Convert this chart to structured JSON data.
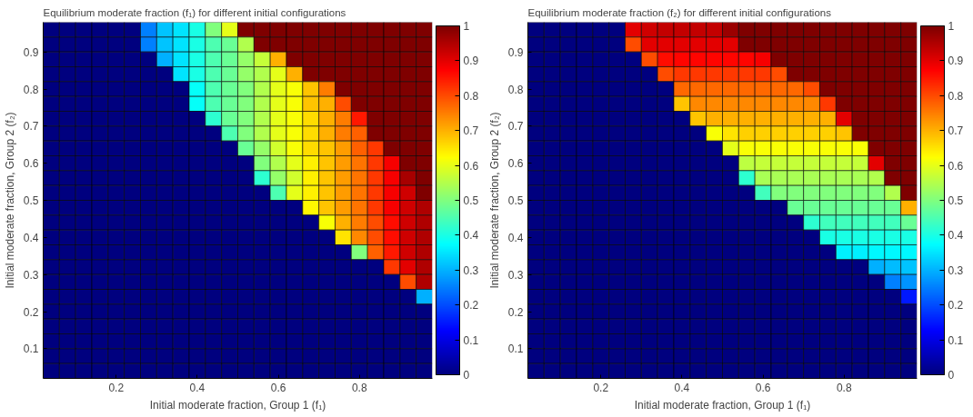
{
  "chart_data": [
    {
      "type": "heatmap",
      "title": "Equilibrium moderate fraction (f₁) for different initial configurations",
      "xlabel": "Initial moderate fraction, Group 1 (f₁)",
      "ylabel": "Initial moderate fraction, Group 2 (f₂)",
      "x": [
        0.04,
        0.08,
        0.12,
        0.16,
        0.2,
        0.24,
        0.28,
        0.32,
        0.36,
        0.4,
        0.44,
        0.48,
        0.52,
        0.56,
        0.6,
        0.64,
        0.68,
        0.72,
        0.76,
        0.8,
        0.84,
        0.88,
        0.92,
        0.96
      ],
      "y": [
        0.96,
        0.92,
        0.88,
        0.84,
        0.8,
        0.76,
        0.72,
        0.68,
        0.64,
        0.6,
        0.56,
        0.52,
        0.48,
        0.44,
        0.4,
        0.36,
        0.32,
        0.28,
        0.24,
        0.2,
        0.16,
        0.12,
        0.08,
        0.04
      ],
      "xlim": [
        0.02,
        0.98
      ],
      "ylim": [
        0.02,
        0.98
      ],
      "xticks": [
        0.2,
        0.4,
        0.6,
        0.8
      ],
      "yticks": [
        0.1,
        0.2,
        0.3,
        0.4,
        0.5,
        0.6,
        0.7,
        0.8,
        0.9
      ],
      "clim": [
        0,
        1
      ],
      "cticks": [
        0,
        0.1,
        0.2,
        0.3,
        0.4,
        0.5,
        0.6,
        0.7,
        0.8,
        0.9,
        1
      ],
      "cells": [
        [
          0,
          0,
          0,
          0,
          0,
          0,
          0.25,
          0.32,
          0.35,
          0.4,
          0.5,
          0.6,
          1,
          1,
          1,
          1,
          1,
          1,
          1,
          1,
          1,
          1,
          1,
          1
        ],
        [
          0,
          0,
          0,
          0,
          0,
          0,
          0.25,
          0.32,
          0.35,
          0.4,
          0.45,
          0.48,
          0.55,
          1,
          1,
          1,
          1,
          1,
          1,
          1,
          1,
          1,
          1,
          1
        ],
        [
          0,
          0,
          0,
          0,
          0,
          0,
          0,
          0.3,
          0.35,
          0.4,
          0.45,
          0.48,
          0.52,
          0.57,
          0.7,
          1,
          1,
          1,
          1,
          1,
          1,
          1,
          1,
          1
        ],
        [
          0,
          0,
          0,
          0,
          0,
          0,
          0,
          0,
          0.35,
          0.4,
          0.45,
          0.48,
          0.52,
          0.55,
          0.6,
          0.7,
          1,
          1,
          1,
          1,
          1,
          1,
          1,
          1
        ],
        [
          0,
          0,
          0,
          0,
          0,
          0,
          0,
          0,
          0,
          0.38,
          0.45,
          0.48,
          0.5,
          0.55,
          0.6,
          0.62,
          0.68,
          0.75,
          1,
          1,
          1,
          1,
          1,
          1
        ],
        [
          0,
          0,
          0,
          0,
          0,
          0,
          0,
          0,
          0,
          0.38,
          0.45,
          0.48,
          0.5,
          0.55,
          0.6,
          0.62,
          0.68,
          0.7,
          0.8,
          1,
          1,
          1,
          1,
          1
        ],
        [
          0,
          0,
          0,
          0,
          0,
          0,
          0,
          0,
          0,
          0,
          0.42,
          0.48,
          0.5,
          0.55,
          0.6,
          0.62,
          0.66,
          0.7,
          0.75,
          0.85,
          1,
          1,
          1,
          1
        ],
        [
          0,
          0,
          0,
          0,
          0,
          0,
          0,
          0,
          0,
          0,
          0,
          0.45,
          0.5,
          0.55,
          0.6,
          0.62,
          0.66,
          0.7,
          0.75,
          0.78,
          1,
          1,
          1,
          1
        ],
        [
          0,
          0,
          0,
          0,
          0,
          0,
          0,
          0,
          0,
          0,
          0,
          0,
          0.48,
          0.52,
          0.58,
          0.62,
          0.66,
          0.68,
          0.72,
          0.78,
          0.82,
          1,
          1,
          1
        ],
        [
          0,
          0,
          0,
          0,
          0,
          0,
          0,
          0,
          0,
          0,
          0,
          0,
          0,
          0.5,
          0.55,
          0.6,
          0.64,
          0.68,
          0.72,
          0.76,
          0.82,
          0.88,
          1,
          1
        ],
        [
          0,
          0,
          0,
          0,
          0,
          0,
          0,
          0,
          0,
          0,
          0,
          0,
          0,
          0.42,
          0.52,
          0.58,
          0.64,
          0.68,
          0.72,
          0.76,
          0.82,
          0.88,
          0.96,
          1
        ],
        [
          0,
          0,
          0,
          0,
          0,
          0,
          0,
          0,
          0,
          0,
          0,
          0,
          0,
          0,
          0.45,
          0.6,
          0.64,
          0.68,
          0.72,
          0.76,
          0.82,
          0.88,
          0.92,
          1
        ],
        [
          0,
          0,
          0,
          0,
          0,
          0,
          0,
          0,
          0,
          0,
          0,
          0,
          0,
          0,
          0,
          0,
          0.63,
          0.68,
          0.72,
          0.76,
          0.82,
          0.88,
          0.92,
          0.95
        ],
        [
          0,
          0,
          0,
          0,
          0,
          0,
          0,
          0,
          0,
          0,
          0,
          0,
          0,
          0,
          0,
          0,
          0,
          0.62,
          0.7,
          0.75,
          0.8,
          0.86,
          0.92,
          0.95
        ],
        [
          0,
          0,
          0,
          0,
          0,
          0,
          0,
          0,
          0,
          0,
          0,
          0,
          0,
          0,
          0,
          0,
          0,
          0,
          0.65,
          0.74,
          0.8,
          0.86,
          0.92,
          0.95
        ],
        [
          0,
          0,
          0,
          0,
          0,
          0,
          0,
          0,
          0,
          0,
          0,
          0,
          0,
          0,
          0,
          0,
          0,
          0,
          0,
          0.5,
          0.78,
          0.85,
          0.92,
          0.95
        ],
        [
          0,
          0,
          0,
          0,
          0,
          0,
          0,
          0,
          0,
          0,
          0,
          0,
          0,
          0,
          0,
          0,
          0,
          0,
          0,
          0,
          0,
          0.82,
          0.9,
          0.95
        ],
        [
          0,
          0,
          0,
          0,
          0,
          0,
          0,
          0,
          0,
          0,
          0,
          0,
          0,
          0,
          0,
          0,
          0,
          0,
          0,
          0,
          0,
          0,
          0.8,
          0.95
        ],
        [
          0,
          0,
          0,
          0,
          0,
          0,
          0,
          0,
          0,
          0,
          0,
          0,
          0,
          0,
          0,
          0,
          0,
          0,
          0,
          0,
          0,
          0,
          0,
          0.3
        ],
        [
          0,
          0,
          0,
          0,
          0,
          0,
          0,
          0,
          0,
          0,
          0,
          0,
          0,
          0,
          0,
          0,
          0,
          0,
          0,
          0,
          0,
          0,
          0,
          0
        ],
        [
          0,
          0,
          0,
          0,
          0,
          0,
          0,
          0,
          0,
          0,
          0,
          0,
          0,
          0,
          0,
          0,
          0,
          0,
          0,
          0,
          0,
          0,
          0,
          0
        ],
        [
          0,
          0,
          0,
          0,
          0,
          0,
          0,
          0,
          0,
          0,
          0,
          0,
          0,
          0,
          0,
          0,
          0,
          0,
          0,
          0,
          0,
          0,
          0,
          0
        ],
        [
          0,
          0,
          0,
          0,
          0,
          0,
          0,
          0,
          0,
          0,
          0,
          0,
          0,
          0,
          0,
          0,
          0,
          0,
          0,
          0,
          0,
          0,
          0,
          0
        ],
        [
          0,
          0,
          0,
          0,
          0,
          0,
          0,
          0,
          0,
          0,
          0,
          0,
          0,
          0,
          0,
          0,
          0,
          0,
          0,
          0,
          0,
          0,
          0,
          0
        ]
      ]
    },
    {
      "type": "heatmap",
      "title": "Equilibrium moderate fraction (f₂) for different initial configurations",
      "xlabel": "Initial moderate fraction, Group 1 (f₁)",
      "ylabel": "Initial moderate fraction, Group 2 (f₂)",
      "x": [
        0.04,
        0.08,
        0.12,
        0.16,
        0.2,
        0.24,
        0.28,
        0.32,
        0.36,
        0.4,
        0.44,
        0.48,
        0.52,
        0.56,
        0.6,
        0.64,
        0.68,
        0.72,
        0.76,
        0.8,
        0.84,
        0.88,
        0.92,
        0.96
      ],
      "y": [
        0.96,
        0.92,
        0.88,
        0.84,
        0.8,
        0.76,
        0.72,
        0.68,
        0.64,
        0.6,
        0.56,
        0.52,
        0.48,
        0.44,
        0.4,
        0.36,
        0.32,
        0.28,
        0.24,
        0.2,
        0.16,
        0.12,
        0.08,
        0.04
      ],
      "xlim": [
        0.02,
        0.98
      ],
      "ylim": [
        0.02,
        0.98
      ],
      "xticks": [
        0.2,
        0.4,
        0.6,
        0.8
      ],
      "yticks": [
        0.1,
        0.2,
        0.3,
        0.4,
        0.5,
        0.6,
        0.7,
        0.8,
        0.9
      ],
      "clim": [
        0,
        1
      ],
      "cticks": [
        0,
        0.1,
        0.2,
        0.3,
        0.4,
        0.5,
        0.6,
        0.7,
        0.8,
        0.9,
        1
      ],
      "cells": [
        [
          0,
          0,
          0,
          0,
          0,
          0,
          0.9,
          0.92,
          0.93,
          0.93,
          0.93,
          0.93,
          0.97,
          1,
          1,
          1,
          1,
          1,
          1,
          1,
          1,
          1,
          1,
          1
        ],
        [
          0,
          0,
          0,
          0,
          0,
          0,
          0.8,
          0.9,
          0.9,
          0.9,
          0.9,
          0.9,
          0.9,
          1,
          1,
          1,
          1,
          1,
          1,
          1,
          1,
          1,
          1,
          1
        ],
        [
          0,
          0,
          0,
          0,
          0,
          0,
          0,
          0.8,
          0.86,
          0.87,
          0.87,
          0.87,
          0.87,
          0.87,
          0.88,
          1,
          1,
          1,
          1,
          1,
          1,
          1,
          1,
          1
        ],
        [
          0,
          0,
          0,
          0,
          0,
          0,
          0,
          0,
          0.8,
          0.82,
          0.82,
          0.82,
          0.82,
          0.82,
          0.82,
          0.8,
          1,
          1,
          1,
          1,
          1,
          1,
          1,
          1
        ],
        [
          0,
          0,
          0,
          0,
          0,
          0,
          0,
          0,
          0,
          0.77,
          0.77,
          0.77,
          0.77,
          0.77,
          0.77,
          0.77,
          0.77,
          0.8,
          1,
          1,
          1,
          1,
          1,
          1
        ],
        [
          0,
          0,
          0,
          0,
          0,
          0,
          0,
          0,
          0,
          0.68,
          0.74,
          0.74,
          0.74,
          0.74,
          0.74,
          0.74,
          0.74,
          0.74,
          0.82,
          1,
          1,
          1,
          1,
          1
        ],
        [
          0,
          0,
          0,
          0,
          0,
          0,
          0,
          0,
          0,
          0,
          0.68,
          0.7,
          0.7,
          0.7,
          0.7,
          0.7,
          0.7,
          0.7,
          0.7,
          0.9,
          1,
          1,
          1,
          1
        ],
        [
          0,
          0,
          0,
          0,
          0,
          0,
          0,
          0,
          0,
          0,
          0,
          0.62,
          0.65,
          0.67,
          0.67,
          0.67,
          0.67,
          0.67,
          0.67,
          0.68,
          1,
          1,
          1,
          1
        ],
        [
          0,
          0,
          0,
          0,
          0,
          0,
          0,
          0,
          0,
          0,
          0,
          0,
          0.6,
          0.62,
          0.62,
          0.62,
          0.62,
          0.62,
          0.62,
          0.62,
          0.62,
          1,
          1,
          1
        ],
        [
          0,
          0,
          0,
          0,
          0,
          0,
          0,
          0,
          0,
          0,
          0,
          0,
          0,
          0.56,
          0.57,
          0.57,
          0.57,
          0.57,
          0.57,
          0.57,
          0.57,
          0.9,
          1,
          1
        ],
        [
          0,
          0,
          0,
          0,
          0,
          0,
          0,
          0,
          0,
          0,
          0,
          0,
          0,
          0.42,
          0.54,
          0.54,
          0.54,
          0.54,
          0.54,
          0.54,
          0.54,
          0.55,
          1,
          1
        ],
        [
          0,
          0,
          0,
          0,
          0,
          0,
          0,
          0,
          0,
          0,
          0,
          0,
          0,
          0,
          0.44,
          0.5,
          0.5,
          0.5,
          0.5,
          0.5,
          0.5,
          0.5,
          0.55,
          1
        ],
        [
          0,
          0,
          0,
          0,
          0,
          0,
          0,
          0,
          0,
          0,
          0,
          0,
          0,
          0,
          0,
          0,
          0.48,
          0.48,
          0.48,
          0.48,
          0.48,
          0.48,
          0.48,
          0.7
        ],
        [
          0,
          0,
          0,
          0,
          0,
          0,
          0,
          0,
          0,
          0,
          0,
          0,
          0,
          0,
          0,
          0,
          0,
          0.42,
          0.44,
          0.44,
          0.44,
          0.44,
          0.44,
          0.48
        ],
        [
          0,
          0,
          0,
          0,
          0,
          0,
          0,
          0,
          0,
          0,
          0,
          0,
          0,
          0,
          0,
          0,
          0,
          0,
          0.4,
          0.4,
          0.4,
          0.4,
          0.4,
          0.4
        ],
        [
          0,
          0,
          0,
          0,
          0,
          0,
          0,
          0,
          0,
          0,
          0,
          0,
          0,
          0,
          0,
          0,
          0,
          0,
          0,
          0.36,
          0.36,
          0.37,
          0.37,
          0.37
        ],
        [
          0,
          0,
          0,
          0,
          0,
          0,
          0,
          0,
          0,
          0,
          0,
          0,
          0,
          0,
          0,
          0,
          0,
          0,
          0,
          0,
          0,
          0.3,
          0.31,
          0.32
        ],
        [
          0,
          0,
          0,
          0,
          0,
          0,
          0,
          0,
          0,
          0,
          0,
          0,
          0,
          0,
          0,
          0,
          0,
          0,
          0,
          0,
          0,
          0,
          0.25,
          0.27
        ],
        [
          0,
          0,
          0,
          0,
          0,
          0,
          0,
          0,
          0,
          0,
          0,
          0,
          0,
          0,
          0,
          0,
          0,
          0,
          0,
          0,
          0,
          0,
          0,
          0.15
        ],
        [
          0,
          0,
          0,
          0,
          0,
          0,
          0,
          0,
          0,
          0,
          0,
          0,
          0,
          0,
          0,
          0,
          0,
          0,
          0,
          0,
          0,
          0,
          0,
          0
        ],
        [
          0,
          0,
          0,
          0,
          0,
          0,
          0,
          0,
          0,
          0,
          0,
          0,
          0,
          0,
          0,
          0,
          0,
          0,
          0,
          0,
          0,
          0,
          0,
          0
        ],
        [
          0,
          0,
          0,
          0,
          0,
          0,
          0,
          0,
          0,
          0,
          0,
          0,
          0,
          0,
          0,
          0,
          0,
          0,
          0,
          0,
          0,
          0,
          0,
          0
        ],
        [
          0,
          0,
          0,
          0,
          0,
          0,
          0,
          0,
          0,
          0,
          0,
          0,
          0,
          0,
          0,
          0,
          0,
          0,
          0,
          0,
          0,
          0,
          0,
          0
        ],
        [
          0,
          0,
          0,
          0,
          0,
          0,
          0,
          0,
          0,
          0,
          0,
          0,
          0,
          0,
          0,
          0,
          0,
          0,
          0,
          0,
          0,
          0,
          0,
          0
        ]
      ]
    }
  ]
}
